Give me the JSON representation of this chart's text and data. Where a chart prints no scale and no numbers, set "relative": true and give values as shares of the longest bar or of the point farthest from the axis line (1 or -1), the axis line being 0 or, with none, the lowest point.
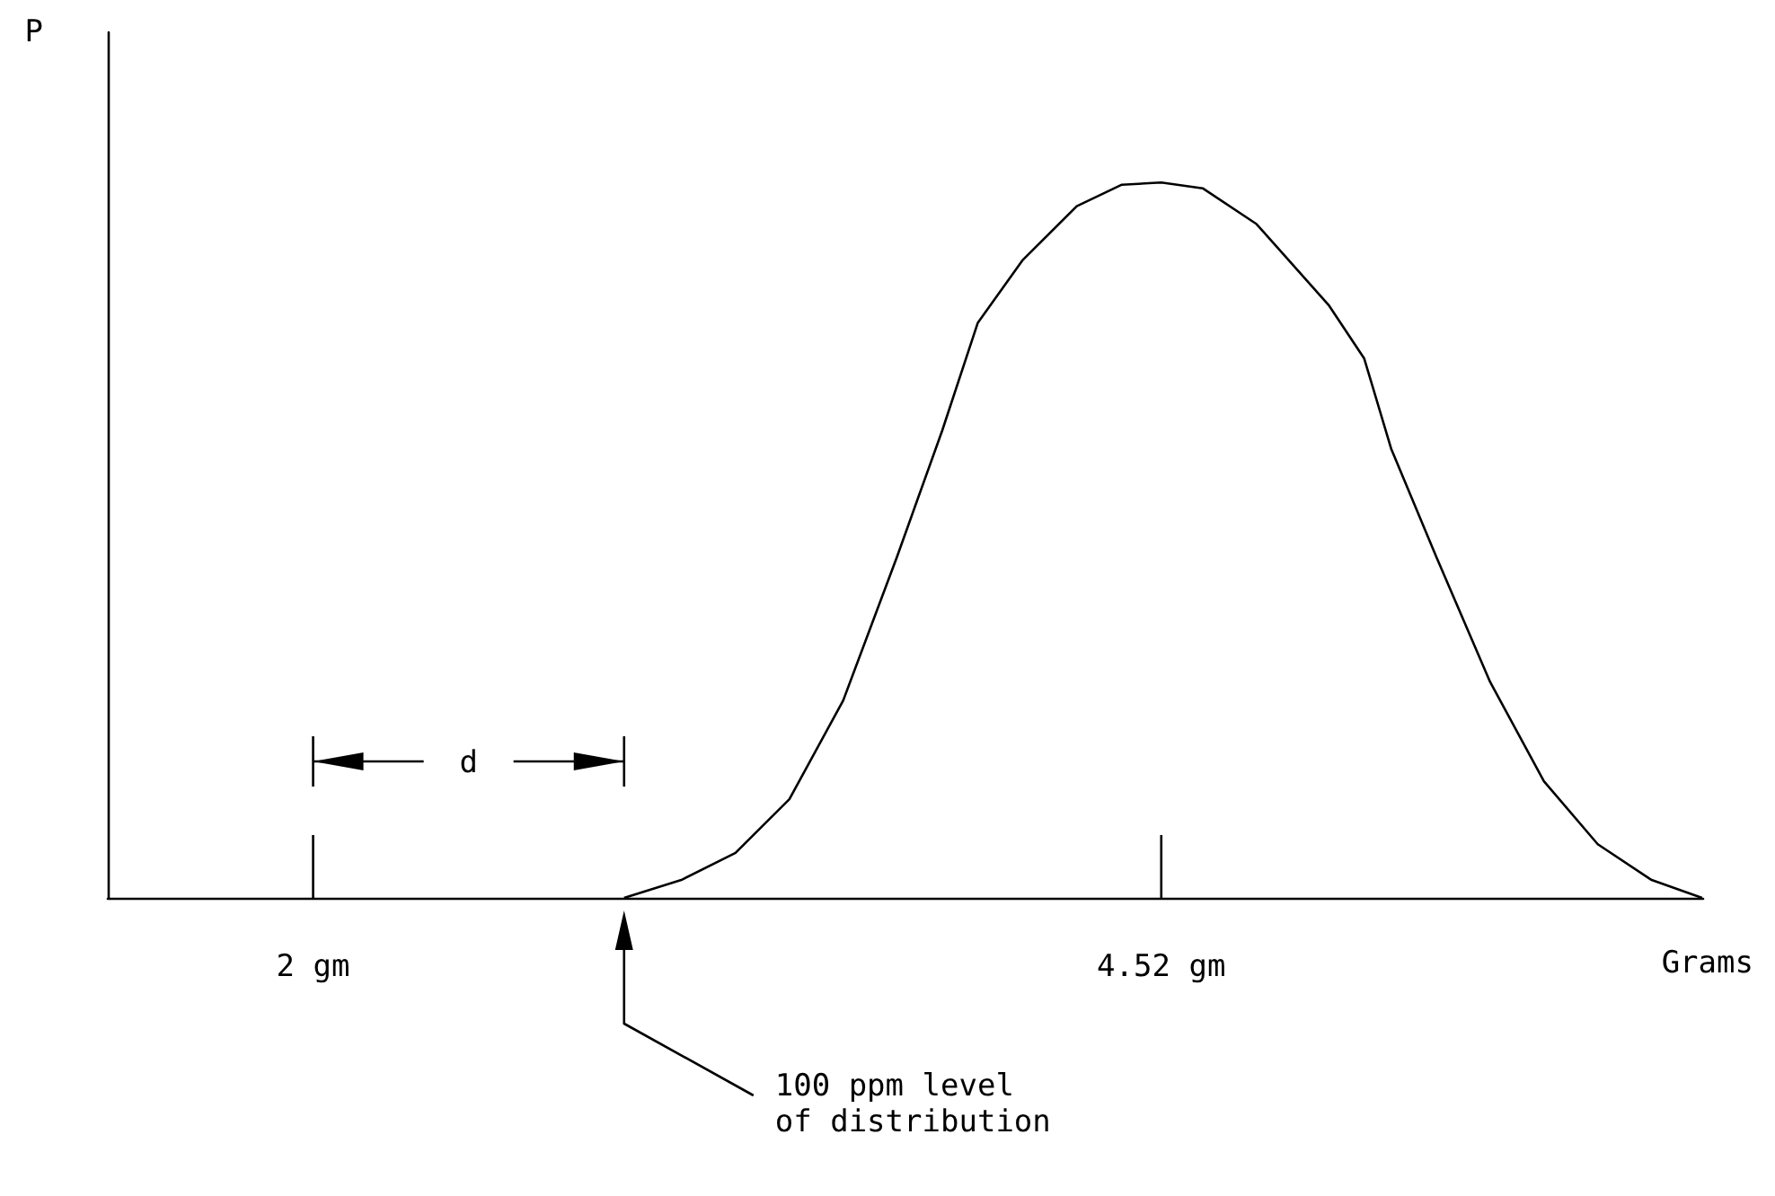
{
  "chart_data": {
    "type": "line",
    "xlabel": "Grams",
    "ylabel": "P",
    "relative": true,
    "color": "#000000",
    "marker": "none",
    "line_style": "solid",
    "grid": false,
    "xlim": [
      1.39,
      6.13
    ],
    "xticks": [
      {
        "value": 2,
        "label": "2 gm"
      },
      {
        "value": 4.52,
        "label": "4.52 gm"
      }
    ],
    "x": [
      2.924,
      3.094,
      3.255,
      3.415,
      3.575,
      3.735,
      3.869,
      3.975,
      4.109,
      4.269,
      4.403,
      4.52,
      4.643,
      4.803,
      5.017,
      5.123,
      5.203,
      5.337,
      5.497,
      5.657,
      5.817,
      5.977,
      6.127
    ],
    "values": [
      0,
      0.025,
      0.063,
      0.138,
      0.276,
      0.477,
      0.653,
      0.804,
      0.892,
      0.967,
      0.997,
      1,
      0.992,
      0.942,
      0.829,
      0.754,
      0.628,
      0.477,
      0.302,
      0.163,
      0.075,
      0.025,
      0
    ],
    "annotations": [
      "d",
      "100 ppm level\nof distribution"
    ]
  }
}
